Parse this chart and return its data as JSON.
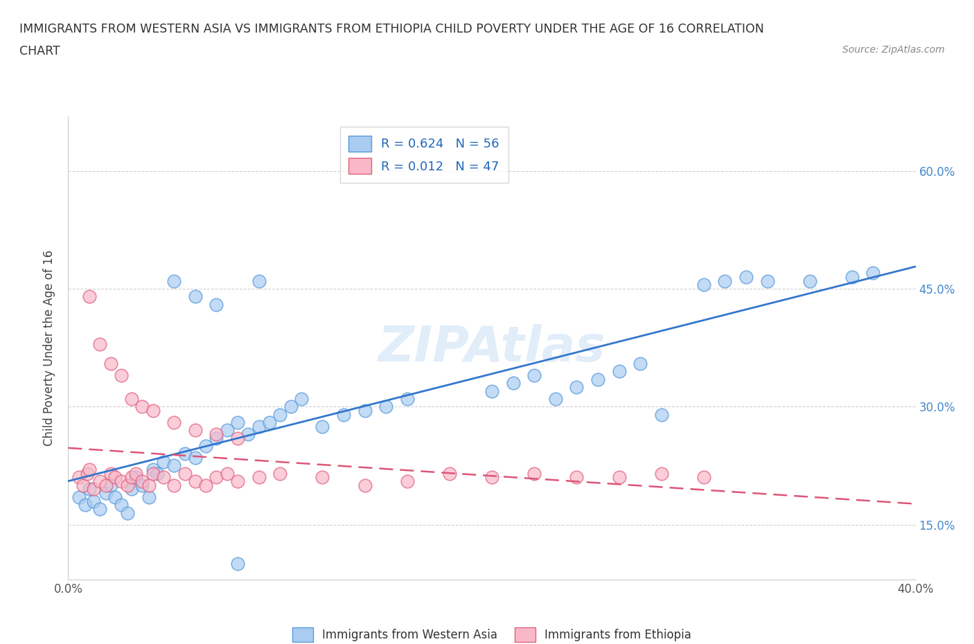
{
  "title_line1": "IMMIGRANTS FROM WESTERN ASIA VS IMMIGRANTS FROM ETHIOPIA CHILD POVERTY UNDER THE AGE OF 16 CORRELATION",
  "title_line2": "CHART",
  "source": "Source: ZipAtlas.com",
  "ylabel": "Child Poverty Under the Age of 16",
  "xlim": [
    0.0,
    0.4
  ],
  "ylim": [
    0.08,
    0.67
  ],
  "ytick_vals": [
    0.15,
    0.3,
    0.45,
    0.6
  ],
  "ytick_labels": [
    "15.0%",
    "30.0%",
    "45.0%",
    "60.0%"
  ],
  "xtick_vals": [
    0.0,
    0.1,
    0.2,
    0.3,
    0.4
  ],
  "xtick_labels": [
    "0.0%",
    "",
    "",
    "",
    "40.0%"
  ],
  "R_western": 0.624,
  "N_western": 56,
  "R_ethiopia": 0.012,
  "N_ethiopia": 47,
  "color_western_fill": "#aaccf0",
  "color_western_edge": "#5599dd",
  "color_ethiopia_fill": "#f9b8c8",
  "color_ethiopia_edge": "#e06080",
  "color_western_line": "#3377cc",
  "color_ethiopia_line": "#dd5577",
  "legend_label_western": "Immigrants from Western Asia",
  "legend_label_ethiopia": "Immigrants from Ethiopia",
  "watermark": "ZIPAtlas",
  "western_asia_x": [
    0.005,
    0.008,
    0.01,
    0.012,
    0.015,
    0.018,
    0.02,
    0.022,
    0.025,
    0.028,
    0.03,
    0.032,
    0.035,
    0.038,
    0.04,
    0.042,
    0.045,
    0.05,
    0.055,
    0.06,
    0.065,
    0.07,
    0.075,
    0.08,
    0.085,
    0.09,
    0.095,
    0.1,
    0.105,
    0.11,
    0.12,
    0.13,
    0.14,
    0.15,
    0.16,
    0.05,
    0.06,
    0.07,
    0.08,
    0.09,
    0.2,
    0.21,
    0.22,
    0.23,
    0.24,
    0.25,
    0.26,
    0.27,
    0.28,
    0.3,
    0.31,
    0.32,
    0.33,
    0.35,
    0.37,
    0.38
  ],
  "western_asia_y": [
    0.185,
    0.175,
    0.195,
    0.18,
    0.17,
    0.19,
    0.2,
    0.185,
    0.175,
    0.165,
    0.195,
    0.21,
    0.2,
    0.185,
    0.22,
    0.215,
    0.23,
    0.225,
    0.24,
    0.235,
    0.25,
    0.26,
    0.27,
    0.28,
    0.265,
    0.275,
    0.28,
    0.29,
    0.3,
    0.31,
    0.275,
    0.29,
    0.295,
    0.3,
    0.31,
    0.46,
    0.44,
    0.43,
    0.1,
    0.46,
    0.32,
    0.33,
    0.34,
    0.31,
    0.325,
    0.335,
    0.345,
    0.355,
    0.29,
    0.455,
    0.46,
    0.465,
    0.46,
    0.46,
    0.465,
    0.47
  ],
  "ethiopia_x": [
    0.005,
    0.007,
    0.009,
    0.01,
    0.012,
    0.015,
    0.018,
    0.02,
    0.022,
    0.025,
    0.028,
    0.03,
    0.032,
    0.035,
    0.038,
    0.04,
    0.045,
    0.05,
    0.055,
    0.06,
    0.065,
    0.07,
    0.075,
    0.08,
    0.01,
    0.015,
    0.02,
    0.025,
    0.03,
    0.035,
    0.04,
    0.05,
    0.06,
    0.07,
    0.08,
    0.09,
    0.1,
    0.12,
    0.14,
    0.16,
    0.18,
    0.2,
    0.22,
    0.24,
    0.26,
    0.28,
    0.3
  ],
  "ethiopia_y": [
    0.21,
    0.2,
    0.215,
    0.22,
    0.195,
    0.205,
    0.2,
    0.215,
    0.21,
    0.205,
    0.2,
    0.21,
    0.215,
    0.205,
    0.2,
    0.215,
    0.21,
    0.2,
    0.215,
    0.205,
    0.2,
    0.21,
    0.215,
    0.205,
    0.44,
    0.38,
    0.355,
    0.34,
    0.31,
    0.3,
    0.295,
    0.28,
    0.27,
    0.265,
    0.26,
    0.21,
    0.215,
    0.21,
    0.2,
    0.205,
    0.215,
    0.21,
    0.215,
    0.21,
    0.21,
    0.215,
    0.21
  ]
}
